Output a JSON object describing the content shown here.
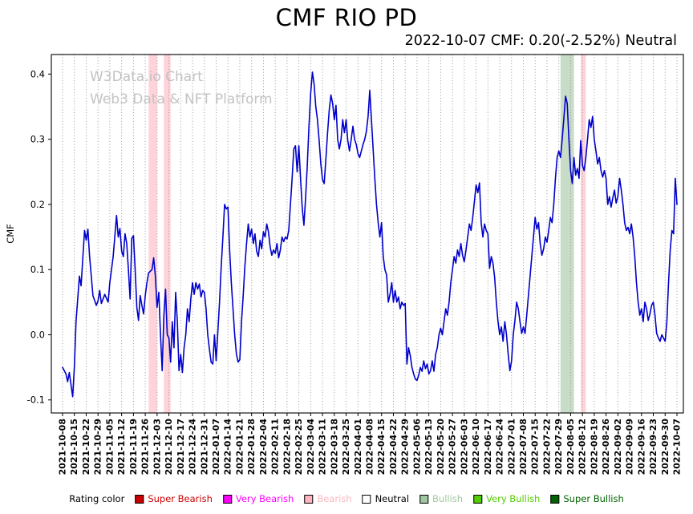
{
  "header": {
    "title": "CMF RIO PD",
    "subtitle": "2022-10-07 CMF: 0.20(-2.52%) Neutral"
  },
  "watermark": {
    "line1": "W3Data.io Chart",
    "line2": "Web3 Data & NFT Platform"
  },
  "legend": {
    "label": "Rating color",
    "items": [
      {
        "label": "Super Bearish",
        "color": "#cc0000",
        "text_color": "#cc0000"
      },
      {
        "label": "Very Bearish",
        "color": "#ff00ff",
        "text_color": "#ff00ff"
      },
      {
        "label": "Bearish",
        "color": "#ffb6c1",
        "text_color": "#ffb6c1"
      },
      {
        "label": "Neutral",
        "color": "#ffffff",
        "text_color": "#000000"
      },
      {
        "label": "Bullish",
        "color": "#a0c8a0",
        "text_color": "#a0c8a0"
      },
      {
        "label": "Very Bullish",
        "color": "#55cc00",
        "text_color": "#55cc00"
      },
      {
        "label": "Super Bullish",
        "color": "#006400",
        "text_color": "#006400"
      }
    ]
  },
  "chart_data": {
    "type": "line",
    "title": "CMF RIO PD",
    "ylabel": "CMF",
    "ylim": [
      -0.12,
      0.43
    ],
    "yticks": [
      -0.1,
      0.0,
      0.1,
      0.2,
      0.3,
      0.4
    ],
    "grid": "vertical-dotted",
    "legend_position": "bottom",
    "line_color": "#0000cc",
    "days_per_tick": 7,
    "x_tick_labels": [
      "2021-10-08",
      "2021-10-15",
      "2021-10-22",
      "2021-10-29",
      "2021-11-05",
      "2021-11-12",
      "2021-11-19",
      "2021-11-26",
      "2021-12-03",
      "2021-12-10",
      "2021-12-17",
      "2021-12-24",
      "2021-12-31",
      "2022-01-07",
      "2022-01-14",
      "2022-01-21",
      "2022-01-28",
      "2022-02-04",
      "2022-02-11",
      "2022-02-18",
      "2022-02-25",
      "2022-03-04",
      "2022-03-11",
      "2022-03-18",
      "2022-03-25",
      "2022-04-01",
      "2022-04-08",
      "2022-04-15",
      "2022-04-22",
      "2022-04-29",
      "2022-05-06",
      "2022-05-13",
      "2022-05-20",
      "2022-05-27",
      "2022-06-03",
      "2022-06-10",
      "2022-06-17",
      "2022-06-24",
      "2022-07-01",
      "2022-07-08",
      "2022-07-15",
      "2022-07-22",
      "2022-07-29",
      "2022-08-05",
      "2022-08-12",
      "2022-08-19",
      "2022-08-26",
      "2022-09-02",
      "2022-09-09",
      "2022-09-16",
      "2022-09-23",
      "2022-09-30",
      "2022-10-07"
    ],
    "bands": [
      {
        "start_day": 51,
        "end_day": 56,
        "rating": "Bearish",
        "color": "rgba(255,182,193,0.6)"
      },
      {
        "start_day": 60,
        "end_day": 64,
        "rating": "Bearish",
        "color": "rgba(255,182,193,0.6)"
      },
      {
        "start_day": 295,
        "end_day": 303,
        "rating": "Bullish",
        "color": "rgba(143,188,143,0.5)"
      },
      {
        "start_day": 307,
        "end_day": 310,
        "rating": "Bearish",
        "color": "rgba(255,182,193,0.6)"
      }
    ],
    "points": [
      [
        0,
        -0.05
      ],
      [
        2,
        -0.06
      ],
      [
        3,
        -0.072
      ],
      [
        4,
        -0.058
      ],
      [
        6,
        -0.095
      ],
      [
        7,
        -0.05
      ],
      [
        8,
        0.02
      ],
      [
        10,
        0.09
      ],
      [
        11,
        0.075
      ],
      [
        13,
        0.16
      ],
      [
        14,
        0.145
      ],
      [
        15,
        0.162
      ],
      [
        16,
        0.12
      ],
      [
        18,
        0.06
      ],
      [
        20,
        0.045
      ],
      [
        21,
        0.052
      ],
      [
        22,
        0.068
      ],
      [
        23,
        0.048
      ],
      [
        25,
        0.062
      ],
      [
        27,
        0.05
      ],
      [
        28,
        0.08
      ],
      [
        30,
        0.12
      ],
      [
        32,
        0.183
      ],
      [
        33,
        0.15
      ],
      [
        34,
        0.163
      ],
      [
        35,
        0.128
      ],
      [
        36,
        0.12
      ],
      [
        37,
        0.155
      ],
      [
        38,
        0.14
      ],
      [
        39,
        0.1
      ],
      [
        40,
        0.055
      ],
      [
        41,
        0.148
      ],
      [
        42,
        0.152
      ],
      [
        43,
        0.1
      ],
      [
        44,
        0.042
      ],
      [
        45,
        0.022
      ],
      [
        46,
        0.06
      ],
      [
        47,
        0.045
      ],
      [
        48,
        0.032
      ],
      [
        49,
        0.06
      ],
      [
        50,
        0.08
      ],
      [
        51,
        0.095
      ],
      [
        53,
        0.1
      ],
      [
        54,
        0.118
      ],
      [
        55,
        0.09
      ],
      [
        56,
        0.042
      ],
      [
        57,
        0.065
      ],
      [
        58,
        0.0
      ],
      [
        59,
        -0.055
      ],
      [
        60,
        0.03
      ],
      [
        61,
        0.07
      ],
      [
        62,
        0.0
      ],
      [
        63,
        -0.005
      ],
      [
        64,
        -0.042
      ],
      [
        65,
        0.02
      ],
      [
        66,
        -0.02
      ],
      [
        67,
        0.065
      ],
      [
        68,
        0.02
      ],
      [
        69,
        -0.055
      ],
      [
        70,
        -0.03
      ],
      [
        71,
        -0.058
      ],
      [
        72,
        -0.02
      ],
      [
        73,
        0.0
      ],
      [
        74,
        0.04
      ],
      [
        75,
        0.02
      ],
      [
        76,
        0.055
      ],
      [
        77,
        0.08
      ],
      [
        78,
        0.062
      ],
      [
        79,
        0.08
      ],
      [
        80,
        0.07
      ],
      [
        81,
        0.078
      ],
      [
        82,
        0.058
      ],
      [
        83,
        0.068
      ],
      [
        84,
        0.065
      ],
      [
        85,
        0.04
      ],
      [
        86,
        0.0
      ],
      [
        87,
        -0.022
      ],
      [
        88,
        -0.042
      ],
      [
        89,
        -0.045
      ],
      [
        90,
        0.0
      ],
      [
        91,
        -0.04
      ],
      [
        92,
        0.005
      ],
      [
        93,
        0.05
      ],
      [
        94,
        0.105
      ],
      [
        95,
        0.15
      ],
      [
        96,
        0.2
      ],
      [
        97,
        0.193
      ],
      [
        98,
        0.196
      ],
      [
        99,
        0.13
      ],
      [
        100,
        0.08
      ],
      [
        101,
        0.04
      ],
      [
        102,
        0.0
      ],
      [
        103,
        -0.03
      ],
      [
        104,
        -0.042
      ],
      [
        105,
        -0.038
      ],
      [
        106,
        0.02
      ],
      [
        107,
        0.06
      ],
      [
        108,
        0.105
      ],
      [
        109,
        0.14
      ],
      [
        110,
        0.17
      ],
      [
        111,
        0.15
      ],
      [
        112,
        0.162
      ],
      [
        113,
        0.14
      ],
      [
        114,
        0.155
      ],
      [
        115,
        0.128
      ],
      [
        116,
        0.12
      ],
      [
        117,
        0.145
      ],
      [
        118,
        0.132
      ],
      [
        119,
        0.158
      ],
      [
        120,
        0.15
      ],
      [
        121,
        0.17
      ],
      [
        122,
        0.158
      ],
      [
        123,
        0.135
      ],
      [
        124,
        0.122
      ],
      [
        125,
        0.13
      ],
      [
        126,
        0.125
      ],
      [
        127,
        0.14
      ],
      [
        128,
        0.118
      ],
      [
        129,
        0.13
      ],
      [
        130,
        0.15
      ],
      [
        131,
        0.143
      ],
      [
        132,
        0.15
      ],
      [
        133,
        0.147
      ],
      [
        134,
        0.16
      ],
      [
        135,
        0.2
      ],
      [
        136,
        0.24
      ],
      [
        137,
        0.285
      ],
      [
        138,
        0.29
      ],
      [
        139,
        0.25
      ],
      [
        140,
        0.29
      ],
      [
        141,
        0.24
      ],
      [
        142,
        0.195
      ],
      [
        143,
        0.168
      ],
      [
        144,
        0.21
      ],
      [
        145,
        0.26
      ],
      [
        146,
        0.32
      ],
      [
        147,
        0.37
      ],
      [
        148,
        0.403
      ],
      [
        149,
        0.385
      ],
      [
        150,
        0.35
      ],
      [
        151,
        0.33
      ],
      [
        152,
        0.298
      ],
      [
        153,
        0.262
      ],
      [
        154,
        0.238
      ],
      [
        155,
        0.232
      ],
      [
        156,
        0.27
      ],
      [
        157,
        0.31
      ],
      [
        158,
        0.345
      ],
      [
        159,
        0.368
      ],
      [
        160,
        0.355
      ],
      [
        161,
        0.33
      ],
      [
        162,
        0.352
      ],
      [
        163,
        0.3
      ],
      [
        164,
        0.285
      ],
      [
        165,
        0.3
      ],
      [
        166,
        0.33
      ],
      [
        167,
        0.31
      ],
      [
        168,
        0.33
      ],
      [
        169,
        0.298
      ],
      [
        170,
        0.282
      ],
      [
        171,
        0.3
      ],
      [
        172,
        0.32
      ],
      [
        173,
        0.3
      ],
      [
        174,
        0.292
      ],
      [
        175,
        0.278
      ],
      [
        176,
        0.272
      ],
      [
        177,
        0.282
      ],
      [
        178,
        0.292
      ],
      [
        179,
        0.3
      ],
      [
        180,
        0.312
      ],
      [
        181,
        0.335
      ],
      [
        182,
        0.375
      ],
      [
        183,
        0.33
      ],
      [
        184,
        0.285
      ],
      [
        185,
        0.24
      ],
      [
        186,
        0.2
      ],
      [
        187,
        0.172
      ],
      [
        188,
        0.15
      ],
      [
        189,
        0.172
      ],
      [
        190,
        0.12
      ],
      [
        191,
        0.1
      ],
      [
        192,
        0.092
      ],
      [
        193,
        0.05
      ],
      [
        194,
        0.062
      ],
      [
        195,
        0.08
      ],
      [
        196,
        0.05
      ],
      [
        197,
        0.068
      ],
      [
        198,
        0.05
      ],
      [
        199,
        0.058
      ],
      [
        200,
        0.04
      ],
      [
        201,
        0.05
      ],
      [
        202,
        0.045
      ],
      [
        203,
        0.048
      ],
      [
        204,
        -0.045
      ],
      [
        205,
        -0.02
      ],
      [
        206,
        -0.032
      ],
      [
        207,
        -0.05
      ],
      [
        208,
        -0.06
      ],
      [
        209,
        -0.068
      ],
      [
        210,
        -0.07
      ],
      [
        211,
        -0.062
      ],
      [
        212,
        -0.05
      ],
      [
        213,
        -0.056
      ],
      [
        214,
        -0.04
      ],
      [
        215,
        -0.052
      ],
      [
        216,
        -0.045
      ],
      [
        217,
        -0.06
      ],
      [
        218,
        -0.055
      ],
      [
        219,
        -0.04
      ],
      [
        220,
        -0.056
      ],
      [
        221,
        -0.03
      ],
      [
        222,
        -0.02
      ],
      [
        223,
        0.0
      ],
      [
        224,
        0.01
      ],
      [
        225,
        0.0
      ],
      [
        226,
        0.02
      ],
      [
        227,
        0.04
      ],
      [
        228,
        0.03
      ],
      [
        229,
        0.05
      ],
      [
        230,
        0.08
      ],
      [
        231,
        0.1
      ],
      [
        232,
        0.12
      ],
      [
        233,
        0.11
      ],
      [
        234,
        0.13
      ],
      [
        235,
        0.12
      ],
      [
        236,
        0.14
      ],
      [
        237,
        0.122
      ],
      [
        238,
        0.112
      ],
      [
        239,
        0.13
      ],
      [
        240,
        0.15
      ],
      [
        241,
        0.17
      ],
      [
        242,
        0.16
      ],
      [
        243,
        0.18
      ],
      [
        244,
        0.205
      ],
      [
        245,
        0.23
      ],
      [
        246,
        0.218
      ],
      [
        247,
        0.233
      ],
      [
        248,
        0.172
      ],
      [
        249,
        0.15
      ],
      [
        250,
        0.17
      ],
      [
        251,
        0.16
      ],
      [
        252,
        0.155
      ],
      [
        253,
        0.102
      ],
      [
        254,
        0.12
      ],
      [
        255,
        0.11
      ],
      [
        256,
        0.088
      ],
      [
        257,
        0.05
      ],
      [
        258,
        0.02
      ],
      [
        259,
        0.0
      ],
      [
        260,
        0.012
      ],
      [
        261,
        -0.01
      ],
      [
        262,
        0.02
      ],
      [
        263,
        0.0
      ],
      [
        264,
        -0.03
      ],
      [
        265,
        -0.055
      ],
      [
        266,
        -0.04
      ],
      [
        267,
        0.0
      ],
      [
        268,
        0.022
      ],
      [
        269,
        0.05
      ],
      [
        270,
        0.04
      ],
      [
        271,
        0.02
      ],
      [
        272,
        0.002
      ],
      [
        273,
        0.012
      ],
      [
        274,
        0.002
      ],
      [
        275,
        0.03
      ],
      [
        276,
        0.06
      ],
      [
        277,
        0.09
      ],
      [
        278,
        0.12
      ],
      [
        279,
        0.15
      ],
      [
        280,
        0.18
      ],
      [
        281,
        0.162
      ],
      [
        282,
        0.172
      ],
      [
        283,
        0.14
      ],
      [
        284,
        0.122
      ],
      [
        285,
        0.132
      ],
      [
        286,
        0.15
      ],
      [
        287,
        0.142
      ],
      [
        288,
        0.16
      ],
      [
        289,
        0.18
      ],
      [
        290,
        0.172
      ],
      [
        291,
        0.2
      ],
      [
        292,
        0.24
      ],
      [
        293,
        0.272
      ],
      [
        294,
        0.282
      ],
      [
        295,
        0.272
      ],
      [
        296,
        0.3
      ],
      [
        297,
        0.332
      ],
      [
        298,
        0.366
      ],
      [
        299,
        0.355
      ],
      [
        300,
        0.3
      ],
      [
        301,
        0.252
      ],
      [
        302,
        0.232
      ],
      [
        303,
        0.272
      ],
      [
        304,
        0.245
      ],
      [
        305,
        0.255
      ],
      [
        306,
        0.24
      ],
      [
        307,
        0.298
      ],
      [
        308,
        0.26
      ],
      [
        309,
        0.252
      ],
      [
        310,
        0.272
      ],
      [
        311,
        0.3
      ],
      [
        312,
        0.33
      ],
      [
        313,
        0.318
      ],
      [
        314,
        0.335
      ],
      [
        315,
        0.3
      ],
      [
        316,
        0.282
      ],
      [
        317,
        0.262
      ],
      [
        318,
        0.272
      ],
      [
        319,
        0.252
      ],
      [
        320,
        0.242
      ],
      [
        321,
        0.252
      ],
      [
        322,
        0.24
      ],
      [
        323,
        0.2
      ],
      [
        324,
        0.212
      ],
      [
        325,
        0.196
      ],
      [
        326,
        0.21
      ],
      [
        327,
        0.222
      ],
      [
        328,
        0.202
      ],
      [
        329,
        0.212
      ],
      [
        330,
        0.24
      ],
      [
        331,
        0.222
      ],
      [
        332,
        0.2
      ],
      [
        333,
        0.172
      ],
      [
        334,
        0.16
      ],
      [
        335,
        0.165
      ],
      [
        336,
        0.155
      ],
      [
        337,
        0.17
      ],
      [
        338,
        0.15
      ],
      [
        339,
        0.12
      ],
      [
        340,
        0.08
      ],
      [
        341,
        0.05
      ],
      [
        342,
        0.03
      ],
      [
        343,
        0.04
      ],
      [
        344,
        0.02
      ],
      [
        345,
        0.05
      ],
      [
        346,
        0.04
      ],
      [
        347,
        0.022
      ],
      [
        348,
        0.032
      ],
      [
        349,
        0.045
      ],
      [
        350,
        0.05
      ],
      [
        351,
        0.03
      ],
      [
        352,
        0.002
      ],
      [
        353,
        -0.005
      ],
      [
        354,
        -0.01
      ],
      [
        355,
        0.0
      ],
      [
        356,
        -0.005
      ],
      [
        357,
        -0.01
      ],
      [
        358,
        0.02
      ],
      [
        359,
        0.08
      ],
      [
        360,
        0.13
      ],
      [
        361,
        0.16
      ],
      [
        362,
        0.155
      ],
      [
        363,
        0.24
      ],
      [
        364,
        0.2
      ]
    ]
  }
}
